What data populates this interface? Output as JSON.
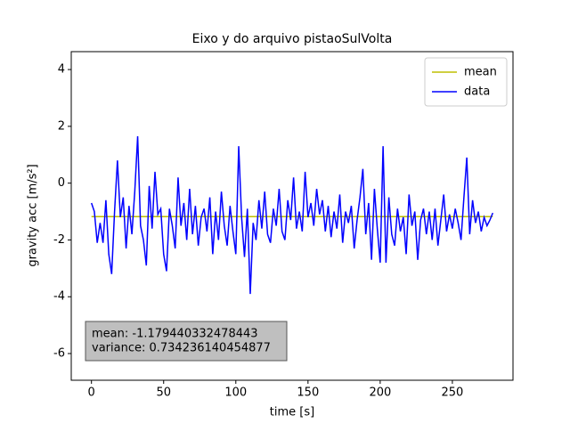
{
  "chart_data": {
    "type": "line",
    "title": "Eixo y do arquivo pistaoSulVolta",
    "xlabel": "time [s]",
    "ylabel": "gravity acc [m/s²]",
    "xlim": [
      -14,
      292
    ],
    "ylim": [
      -6.94,
      4.63
    ],
    "xticks": [
      0,
      50,
      100,
      150,
      200,
      250
    ],
    "yticks": [
      -6,
      -4,
      -2,
      0,
      2,
      4
    ],
    "legend": "upper right",
    "annotations": [
      "mean: -1.179440332478443",
      "variance: 0.734236140454877"
    ],
    "series": [
      {
        "name": "mean",
        "color": "#bfbf00",
        "x": [
          0,
          278
        ],
        "values": [
          -1.179440332478443,
          -1.179440332478443
        ]
      },
      {
        "name": "data",
        "color": "#0000ff",
        "x": [
          0,
          2,
          4,
          6,
          8,
          10,
          12,
          14,
          16,
          18,
          20,
          22,
          24,
          26,
          28,
          30,
          32,
          34,
          36,
          38,
          40,
          42,
          44,
          46,
          48,
          50,
          52,
          54,
          56,
          58,
          60,
          62,
          64,
          66,
          68,
          70,
          72,
          74,
          76,
          78,
          80,
          82,
          84,
          86,
          88,
          90,
          92,
          94,
          96,
          98,
          100,
          102,
          104,
          106,
          108,
          110,
          112,
          114,
          116,
          118,
          120,
          122,
          124,
          126,
          128,
          130,
          132,
          134,
          136,
          138,
          140,
          142,
          144,
          146,
          148,
          150,
          152,
          154,
          156,
          158,
          160,
          162,
          164,
          166,
          168,
          170,
          172,
          174,
          176,
          178,
          180,
          182,
          184,
          186,
          188,
          190,
          192,
          194,
          196,
          198,
          200,
          202,
          204,
          206,
          208,
          210,
          212,
          214,
          216,
          218,
          220,
          222,
          224,
          226,
          228,
          230,
          232,
          234,
          236,
          238,
          240,
          242,
          244,
          246,
          248,
          250,
          252,
          254,
          256,
          258,
          260,
          262,
          264,
          266,
          268,
          270,
          272,
          274,
          276,
          278
        ],
        "values": [
          -0.7,
          -1.0,
          -2.1,
          -1.4,
          -2.1,
          -0.6,
          -2.5,
          -3.2,
          -1.0,
          0.8,
          -1.2,
          -0.5,
          -2.3,
          -0.8,
          -1.8,
          -0.3,
          1.65,
          -1.5,
          -2.0,
          -2.9,
          -0.1,
          -1.6,
          0.4,
          -1.1,
          -0.9,
          -2.5,
          -3.1,
          -0.9,
          -1.5,
          -2.3,
          0.2,
          -1.5,
          -0.7,
          -2.0,
          -0.2,
          -1.8,
          -0.8,
          -2.2,
          -1.2,
          -0.9,
          -1.7,
          -0.5,
          -2.5,
          -1.0,
          -2.0,
          -0.3,
          -1.5,
          -2.2,
          -0.8,
          -1.7,
          -2.5,
          1.3,
          -1.2,
          -2.6,
          -0.9,
          -3.9,
          -1.4,
          -2.0,
          -0.6,
          -1.6,
          -0.3,
          -1.8,
          -2.1,
          -0.9,
          -1.5,
          -0.2,
          -1.7,
          -2.0,
          -0.6,
          -1.3,
          0.2,
          -1.6,
          -1.0,
          -1.7,
          0.4,
          -1.2,
          -0.7,
          -1.5,
          -0.2,
          -1.1,
          -0.6,
          -1.7,
          -0.8,
          -1.9,
          -1.0,
          -1.6,
          -0.4,
          -2.1,
          -1.0,
          -1.4,
          -0.8,
          -2.3,
          -1.3,
          -0.5,
          0.5,
          -1.8,
          -0.7,
          -2.7,
          -0.2,
          -1.6,
          -2.8,
          1.3,
          -2.8,
          -0.5,
          -1.8,
          -2.2,
          -0.9,
          -1.7,
          -1.2,
          -2.5,
          -0.4,
          -1.5,
          -1.0,
          -2.7,
          -1.3,
          -0.9,
          -1.8,
          -1.0,
          -2.0,
          -0.9,
          -2.2,
          -1.3,
          -0.4,
          -1.7,
          -1.1,
          -1.6,
          -0.9,
          -1.4,
          -2.0,
          -0.5,
          0.9,
          -1.8,
          -0.6,
          -1.4,
          -1.0,
          -1.7,
          -1.2,
          -1.5,
          -1.3,
          -1.05
        ]
      }
    ]
  }
}
